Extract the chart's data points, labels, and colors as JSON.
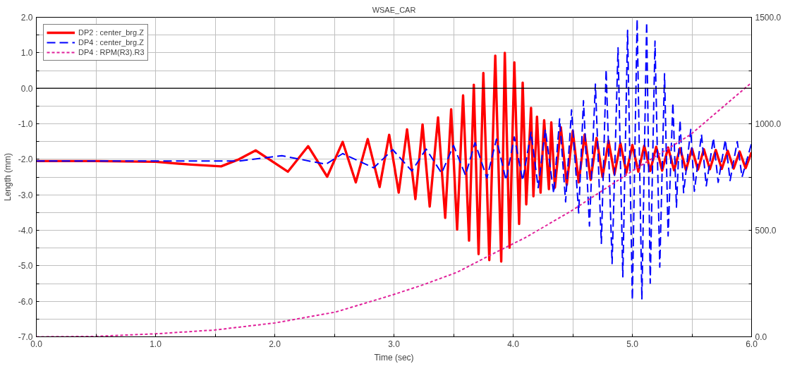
{
  "chart_data": {
    "type": "line",
    "title": "WSAE_CAR",
    "xlabel": "Time (sec)",
    "ylabel": "Length (mm)",
    "xlim": [
      0,
      6
    ],
    "ylim": [
      -7,
      2
    ],
    "y2lim": [
      0,
      1500
    ],
    "xticks": [
      {
        "value": 0,
        "label": "0.0"
      },
      {
        "value": 0.5,
        "label": null
      },
      {
        "value": 1,
        "label": "1.0"
      },
      {
        "value": 1.5,
        "label": null
      },
      {
        "value": 2,
        "label": "2.0"
      },
      {
        "value": 2.5,
        "label": null
      },
      {
        "value": 3,
        "label": "3.0"
      },
      {
        "value": 3.5,
        "label": null
      },
      {
        "value": 4,
        "label": "4.0"
      },
      {
        "value": 4.5,
        "label": null
      },
      {
        "value": 5,
        "label": "5.0"
      },
      {
        "value": 5.5,
        "label": null
      },
      {
        "value": 6,
        "label": "6.0"
      }
    ],
    "yticks": [
      {
        "value": -7,
        "label": "-7.0"
      },
      {
        "value": -6.5,
        "label": null
      },
      {
        "value": -6,
        "label": "-6.0"
      },
      {
        "value": -5.5,
        "label": null
      },
      {
        "value": -5,
        "label": "-5.0"
      },
      {
        "value": -4.5,
        "label": null
      },
      {
        "value": -4,
        "label": "-4.0"
      },
      {
        "value": -3.5,
        "label": null
      },
      {
        "value": -3,
        "label": "-3.0"
      },
      {
        "value": -2.5,
        "label": null
      },
      {
        "value": -2,
        "label": "-2.0"
      },
      {
        "value": -1.5,
        "label": null
      },
      {
        "value": -1,
        "label": "-1.0"
      },
      {
        "value": -0.5,
        "label": null
      },
      {
        "value": 0,
        "label": "0.0"
      },
      {
        "value": 0.5,
        "label": null
      },
      {
        "value": 1,
        "label": "1.0"
      },
      {
        "value": 1.5,
        "label": null
      },
      {
        "value": 2,
        "label": "2.0"
      }
    ],
    "y2ticks": [
      {
        "value": 0,
        "label": "0.0"
      },
      {
        "value": 250,
        "label": null
      },
      {
        "value": 500,
        "label": "500.0"
      },
      {
        "value": 750,
        "label": null
      },
      {
        "value": 1000,
        "label": "1000.0"
      },
      {
        "value": 1250,
        "label": null
      },
      {
        "value": 1500,
        "label": "1500.0"
      }
    ],
    "grid": true,
    "legend": "top left",
    "ref_lines": [
      {
        "axis": "y",
        "value": 0,
        "color": "#000000"
      }
    ],
    "series": [
      {
        "name": "DP2 : center_brg.Z",
        "color": "#ff0000",
        "line_style": "solid",
        "x": [
          0,
          0.5,
          1.0,
          1.3,
          1.55,
          1.7,
          1.84,
          2.11,
          2.28,
          2.44,
          2.57,
          2.68,
          2.78,
          2.88,
          2.96,
          3.04,
          3.11,
          3.18,
          3.24,
          3.3,
          3.37,
          3.43,
          3.48,
          3.53,
          3.58,
          3.63,
          3.67,
          3.71,
          3.75,
          3.8,
          3.85,
          3.9,
          3.93,
          3.97,
          4.01,
          4.05,
          4.08,
          4.11,
          4.15,
          4.17,
          4.2,
          4.23,
          4.26,
          4.3,
          4.32,
          4.35,
          4.4,
          4.45,
          4.5,
          4.55,
          4.6,
          4.65,
          4.7,
          4.75,
          4.8,
          4.85,
          4.9,
          4.95,
          5.0,
          5.05,
          5.1,
          5.15,
          5.2,
          5.25,
          5.3,
          5.35,
          5.4,
          5.45,
          5.5,
          5.55,
          5.6,
          5.65,
          5.7,
          5.75,
          5.8,
          5.85,
          5.9,
          5.95,
          6.0
        ],
        "values": [
          -2.05,
          -2.05,
          -2.07,
          -2.15,
          -2.2,
          -2.0,
          -1.75,
          -2.35,
          -1.63,
          -2.49,
          -1.51,
          -2.65,
          -1.43,
          -2.78,
          -1.31,
          -2.94,
          -1.16,
          -3.12,
          -1.02,
          -3.33,
          -0.82,
          -3.65,
          -0.59,
          -3.98,
          -0.2,
          -4.29,
          0.1,
          -4.67,
          0.43,
          -4.84,
          0.92,
          -4.88,
          1.0,
          -4.49,
          0.73,
          -3.82,
          0.16,
          -3.27,
          -0.55,
          -3.04,
          -0.8,
          -2.94,
          -0.9,
          -2.84,
          -0.96,
          -2.8,
          -1.1,
          -2.72,
          -1.2,
          -2.65,
          -1.3,
          -2.58,
          -1.4,
          -2.5,
          -1.48,
          -2.42,
          -1.55,
          -2.38,
          -1.6,
          -2.35,
          -1.62,
          -2.33,
          -1.65,
          -2.32,
          -1.67,
          -2.31,
          -1.69,
          -2.3,
          -1.7,
          -2.29,
          -1.72,
          -2.28,
          -1.74,
          -2.27,
          -1.76,
          -2.26,
          -1.78,
          -2.25,
          -1.8
        ]
      },
      {
        "name": "DP4 : center_brg.Z",
        "color": "#0000ff",
        "line_style": "dashed",
        "x": [
          0,
          1.0,
          1.5,
          1.7,
          2.06,
          2.43,
          2.57,
          2.83,
          2.99,
          3.15,
          3.27,
          3.4,
          3.5,
          3.6,
          3.68,
          3.78,
          3.86,
          3.94,
          4.01,
          4.08,
          4.15,
          4.21,
          4.27,
          4.34,
          4.39,
          4.44,
          4.49,
          4.55,
          4.59,
          4.64,
          4.69,
          4.74,
          4.78,
          4.83,
          4.88,
          4.92,
          4.96,
          5.0,
          5.04,
          5.08,
          5.12,
          5.15,
          5.19,
          5.23,
          5.27,
          5.3,
          5.34,
          5.37,
          5.4,
          5.43,
          5.49,
          5.52,
          5.58,
          5.62,
          5.68,
          5.72,
          5.78,
          5.82,
          5.88,
          5.92,
          6.0
        ],
        "values": [
          -2.05,
          -2.05,
          -2.05,
          -2.05,
          -1.9,
          -2.14,
          -1.84,
          -2.24,
          -1.73,
          -2.33,
          -1.71,
          -2.39,
          -1.61,
          -2.45,
          -1.53,
          -2.53,
          -1.43,
          -2.59,
          -1.37,
          -2.6,
          -1.24,
          -2.8,
          -1.16,
          -2.96,
          -0.86,
          -3.2,
          -0.61,
          -3.51,
          -0.35,
          -3.88,
          0.12,
          -4.37,
          0.53,
          -4.94,
          1.14,
          -5.31,
          1.63,
          -5.96,
          1.95,
          -5.95,
          1.86,
          -5.49,
          1.33,
          -5.04,
          0.41,
          -4.16,
          -0.41,
          -3.35,
          -0.9,
          -2.94,
          -1.16,
          -2.9,
          -1.3,
          -2.75,
          -1.4,
          -2.65,
          -1.45,
          -2.6,
          -1.5,
          -2.5,
          -1.55
        ]
      },
      {
        "name": "DP4 : RPM(R3).R3",
        "color": "#e0209a",
        "line_style": "dotted",
        "axis": "y2",
        "x": [
          0,
          0.5,
          1.0,
          1.5,
          2.0,
          2.51,
          2.99,
          3.25,
          3.53,
          3.81,
          4.1,
          4.48,
          5.02,
          5.49,
          5.98,
          6.0
        ],
        "values": [
          0,
          2,
          14,
          32,
          65,
          116,
          197,
          245,
          303,
          384,
          465,
          588,
          786,
          950,
          1184,
          1190
        ]
      }
    ]
  }
}
